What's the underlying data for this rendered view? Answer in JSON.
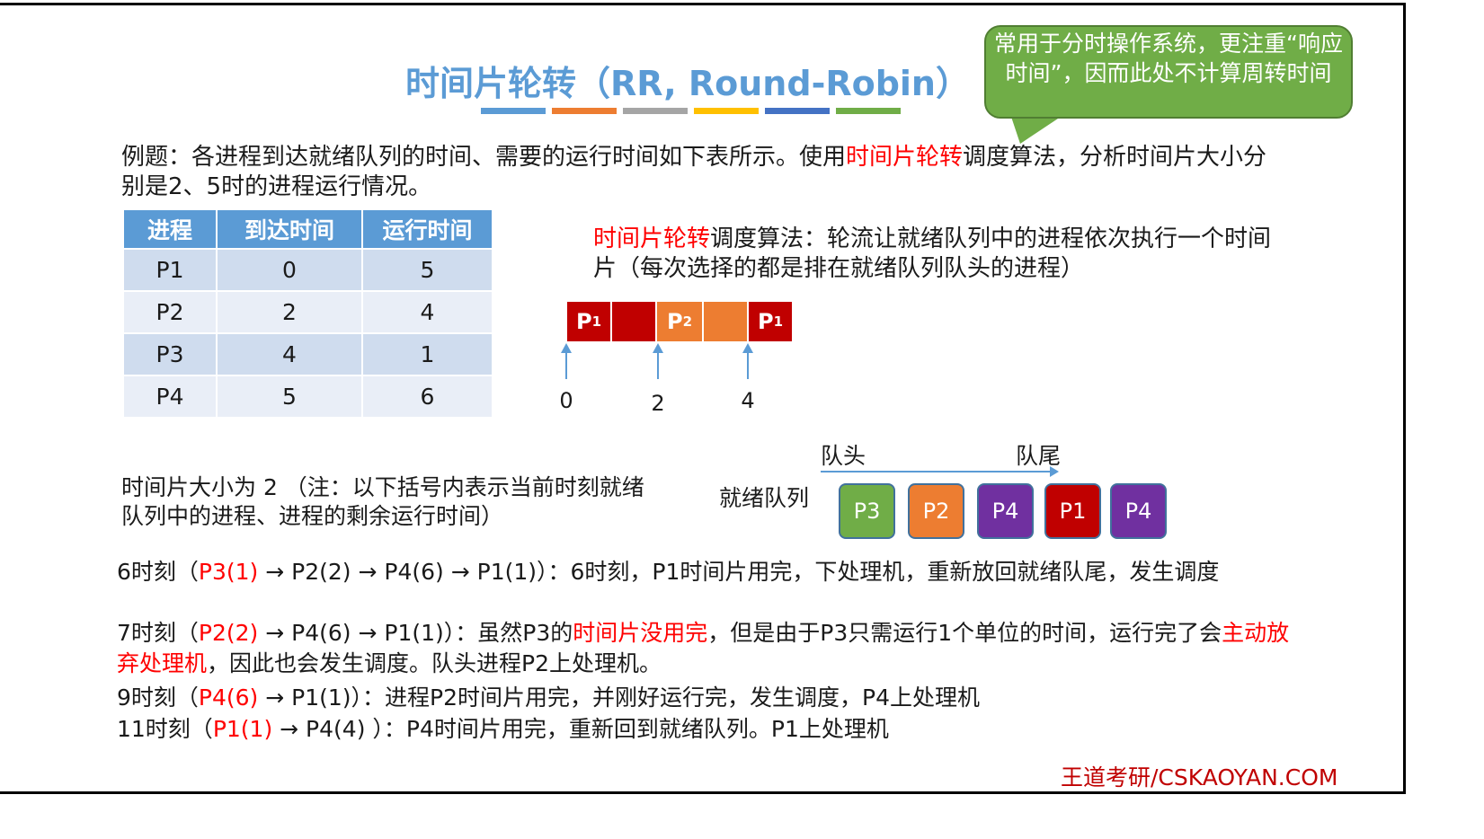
{
  "title": "时间片轮转（RR, Round-Robin）",
  "title_bar_colors": [
    "#5b9bd5",
    "#ed7d31",
    "#a5a5a5",
    "#ffc000",
    "#4472c4",
    "#70ad47"
  ],
  "callout": "常用于分时操作系统，更注重“响应时间”，因而此处不计算周转时间",
  "intro": {
    "a": "例题：各进程到达就绪队列的时间、需要的运行时间如下表所示。使用",
    "b": "时间片轮转",
    "c": "调度算法，分析时间片大小分别是2、5时的进程运行情况。"
  },
  "table": {
    "headers": [
      "进程",
      "到达时间",
      "运行时间"
    ],
    "rows": [
      [
        "P1",
        "0",
        "5"
      ],
      [
        "P2",
        "2",
        "4"
      ],
      [
        "P3",
        "4",
        "1"
      ],
      [
        "P4",
        "5",
        "6"
      ]
    ]
  },
  "definition": {
    "a": "时间片轮转",
    "b": "调度算法：轮流让就绪队列中的进程依次执行一个时间片（每次选择的都是排在就绪队列队头的进程）"
  },
  "gantt": {
    "segments": [
      {
        "label": "P",
        "sub": "1",
        "color": "#c00000"
      },
      {
        "label": "",
        "sub": "",
        "color": "#c00000"
      },
      {
        "label": "P",
        "sub": "2",
        "color": "#ed7d31"
      },
      {
        "label": "",
        "sub": "",
        "color": "#ed7d31"
      },
      {
        "label": "P",
        "sub": "1",
        "color": "#c00000"
      }
    ],
    "ticks": [
      "0",
      "2",
      "4"
    ]
  },
  "queue": {
    "head": "队头",
    "tail": "队尾",
    "label": "就绪队列",
    "items": [
      {
        "name": "P3",
        "color": "#70ad47"
      },
      {
        "name": "P2",
        "color": "#ed7d31"
      },
      {
        "name": "P4",
        "color": "#7030a0"
      },
      {
        "name": "P1",
        "color": "#c00000"
      },
      {
        "name": "P4",
        "color": "#7030a0"
      }
    ]
  },
  "note": "时间片大小为 2 （注：以下括号内表示当前时刻就绪队列中的进程、进程的剩余运行时间）",
  "lines": [
    {
      "a": "6时刻（",
      "r": "P3(1)",
      "b": " → P2(2) → P4(6) → P1(1)）：6时刻，P1时间片用完，下处理机，重新放回就绪队尾，发生调度"
    },
    {
      "a": "7时刻（",
      "r": "P2(2)",
      "b": " → P4(6) → P1(1)）：虽然P3的",
      "r2": "时间片没用完",
      "c": "，但是由于P3只需运行1个单位的时间，运行完了会",
      "r3": "主动放弃处理机",
      "d": "，因此也会发生调度。队头进程P2上处理机。"
    },
    {
      "a": "9时刻（",
      "r": "P4(6)",
      "b": " → P1(1)）：进程P2时间片用完，并刚好运行完，发生调度，P4上处理机"
    },
    {
      "a": "11时刻（",
      "r": "P1(1)",
      "b": " → P4(4) ）：P4时间片用完，重新回到就绪队列。P1上处理机"
    }
  ],
  "footer": "王道考研/CSKAOYAN.COM"
}
